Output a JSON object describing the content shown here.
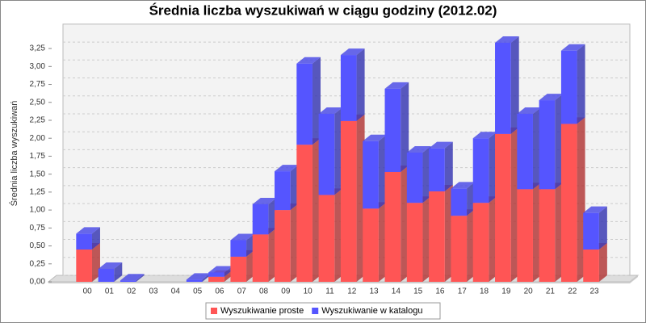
{
  "chart_data": {
    "type": "bar",
    "stacked": true,
    "title": "Średnia liczba wyszukiwań w ciągu godziny (2012.02)",
    "y_label": "Średnia liczba wyszukiwań",
    "categories": [
      "00",
      "01",
      "02",
      "03",
      "04",
      "05",
      "06",
      "07",
      "08",
      "09",
      "10",
      "11",
      "12",
      "13",
      "14",
      "15",
      "16",
      "17",
      "18",
      "19",
      "20",
      "21",
      "22",
      "23"
    ],
    "series": [
      {
        "name": "Wyszukiwanie proste",
        "color": "#ff5555",
        "values": [
          0.45,
          0,
          0,
          0,
          0,
          0,
          0.07,
          0.35,
          0.66,
          1.0,
          1.91,
          1.21,
          2.24,
          1.02,
          1.53,
          1.1,
          1.26,
          0.92,
          1.1,
          2.06,
          1.29,
          1.29,
          2.2,
          0.45
        ]
      },
      {
        "name": "Wyszukiwanie w katalogu",
        "color": "#5555ff",
        "values": [
          0.22,
          0.18,
          0.02,
          0,
          0,
          0.03,
          0.06,
          0.23,
          0.42,
          0.54,
          1.13,
          1.13,
          0.92,
          0.94,
          1.16,
          0.7,
          0.6,
          0.38,
          0.9,
          1.27,
          1.05,
          1.24,
          1.02,
          0.51
        ]
      }
    ],
    "ylim": [
      0,
      3.5
    ],
    "yticks": [
      {
        "value": 0,
        "label": "0,00"
      },
      {
        "value": 0.25,
        "label": "0,25"
      },
      {
        "value": 0.5,
        "label": "0,50"
      },
      {
        "value": 0.75,
        "label": "0,75"
      },
      {
        "value": 1,
        "label": "1,00"
      },
      {
        "value": 1.25,
        "label": "1,25"
      },
      {
        "value": 1.5,
        "label": "1,50"
      },
      {
        "value": 1.75,
        "label": "1,75"
      },
      {
        "value": 2,
        "label": "2,00"
      },
      {
        "value": 2.25,
        "label": "2,25"
      },
      {
        "value": 2.5,
        "label": "2,50"
      },
      {
        "value": 2.75,
        "label": "2,75"
      },
      {
        "value": 3,
        "label": "3,00"
      },
      {
        "value": 3.25,
        "label": "3,25"
      }
    ],
    "grid": true,
    "legend": "bottom"
  }
}
